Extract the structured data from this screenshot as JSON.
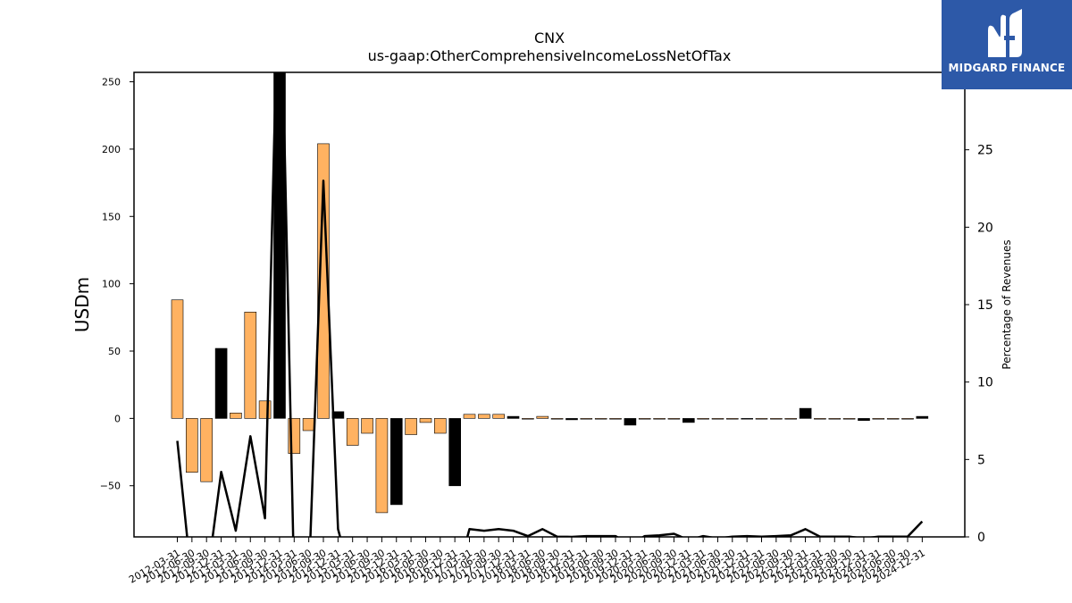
{
  "chart_data": {
    "type": "bar",
    "title": "CNX",
    "subtitle": "us-gaap:OtherComprehensiveIncomeLossNetOfTax",
    "ylabel": "USDm",
    "y2label": "Percentage of Revenues",
    "ylim": [
      -88,
      257
    ],
    "y2lim": [
      0,
      30
    ],
    "yticks": [
      -50,
      0,
      50,
      100,
      150,
      200,
      250
    ],
    "y2ticks": [
      0,
      5,
      10,
      15,
      20,
      25
    ],
    "colors": {
      "positive": "#ffb261",
      "negative": "#000000",
      "line": "#000000"
    },
    "categories": [
      "2012-03-31",
      "2012-06-30",
      "2012-09-30",
      "2012-12-31",
      "2013-03-31",
      "2013-06-30",
      "2013-09-30",
      "2013-12-31",
      "2014-03-31",
      "2014-06-30",
      "2014-09-30",
      "2014-12-31",
      "2015-03-31",
      "2015-06-30",
      "2015-09-30",
      "2015-12-31",
      "2016-03-31",
      "2016-06-30",
      "2016-09-30",
      "2016-12-31",
      "2017-03-31",
      "2017-06-30",
      "2017-09-30",
      "2017-12-31",
      "2018-03-31",
      "2018-06-30",
      "2018-09-30",
      "2018-12-31",
      "2019-03-31",
      "2019-06-30",
      "2019-09-30",
      "2019-12-31",
      "2020-03-31",
      "2020-06-30",
      "2020-09-30",
      "2020-12-31",
      "2021-03-31",
      "2021-06-30",
      "2021-09-30",
      "2021-12-31",
      "2022-03-31",
      "2022-06-30",
      "2022-09-30",
      "2022-12-31",
      "2023-03-31",
      "2023-06-30",
      "2023-09-30",
      "2023-12-31",
      "2024-03-31",
      "2024-06-30",
      "2024-09-30",
      "2024-12-31"
    ],
    "values": [
      88,
      -40,
      -47,
      52,
      4,
      79,
      13,
      268,
      -26,
      -9,
      204,
      5,
      -20,
      -11,
      -70,
      -64,
      -12,
      -3,
      -11,
      -50,
      3,
      3,
      3,
      1.5,
      -0.5,
      1.5,
      -0.5,
      -1,
      -0.5,
      -0.5,
      -0.5,
      -5,
      -0.5,
      -0.5,
      -0.5,
      -3,
      -0.5,
      -0.5,
      -0.5,
      -0.5,
      -0.5,
      -0.5,
      -0.5,
      7.5,
      -0.5,
      -0.5,
      -0.5,
      -1.5,
      -0.5,
      -0.5,
      -0.5,
      1.5
    ],
    "bar_colors": [
      "positive",
      "positive",
      "positive",
      "negative",
      "positive",
      "positive",
      "positive",
      "negative",
      "positive",
      "positive",
      "positive",
      "negative",
      "positive",
      "positive",
      "positive",
      "negative",
      "positive",
      "positive",
      "positive",
      "negative",
      "positive",
      "positive",
      "positive",
      "negative",
      "positive",
      "positive",
      "positive",
      "negative",
      "positive",
      "positive",
      "positive",
      "negative",
      "positive",
      "positive",
      "positive",
      "negative",
      "positive",
      "positive",
      "positive",
      "negative",
      "positive",
      "positive",
      "positive",
      "negative",
      "positive",
      "positive",
      "positive",
      "negative",
      "positive",
      "positive",
      "positive",
      "negative"
    ],
    "pct_of_revenues": [
      6.2,
      -3,
      -3,
      4.2,
      0.4,
      6.5,
      1.2,
      40,
      -3,
      -3,
      23,
      0.5,
      -3,
      -3,
      -3,
      -3,
      -3,
      -3,
      -3,
      -3,
      0.5,
      0.4,
      0.5,
      0.4,
      0.05,
      0.5,
      0.02,
      0.0,
      0.05,
      0.05,
      0.05,
      -0.5,
      0.05,
      0.1,
      0.2,
      -0.2,
      0.05,
      -0.1,
      0.02,
      0.05,
      0.02,
      0.05,
      0.1,
      0.5,
      0.02,
      0.02,
      0.02,
      -0.1,
      0.02,
      0.02,
      0.02,
      1.0
    ]
  },
  "logo": {
    "name": "MIDGARD FINANCE"
  }
}
